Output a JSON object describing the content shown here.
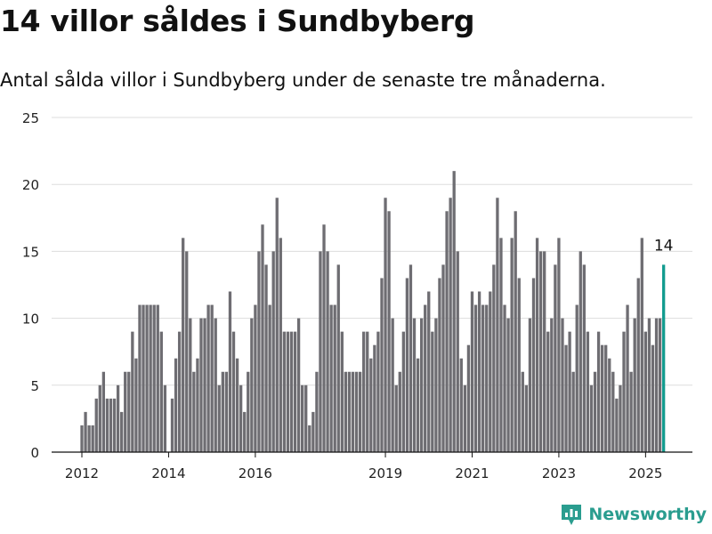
{
  "header": {
    "title": "14 villor såldes i Sundbyberg",
    "subtitle": "Antal sålda villor i Sundbyberg under de senaste tre månaderna."
  },
  "brand": {
    "name": "Newsworthy",
    "icon": "chart-logo-icon",
    "color": "#2a9d8f"
  },
  "colors": {
    "bar": "#6e6d72",
    "highlight": "#139c8f",
    "grid": "#dddddd",
    "axis": "#111111"
  },
  "chart_data": {
    "type": "bar",
    "title": "14 villor såldes i Sundbyberg",
    "subtitle": "Antal sålda villor i Sundbyberg under de senaste tre månaderna.",
    "xlabel": "",
    "ylabel": "",
    "ylim": [
      0,
      25
    ],
    "yticks": [
      0,
      5,
      10,
      15,
      20,
      25
    ],
    "grid": true,
    "x_start": "2012-01",
    "x_ticks": [
      {
        "label": "2012",
        "date": "2012-01"
      },
      {
        "label": "2014",
        "date": "2014-01"
      },
      {
        "label": "2016",
        "date": "2016-01"
      },
      {
        "label": "2019",
        "date": "2019-01"
      },
      {
        "label": "2021",
        "date": "2021-01"
      },
      {
        "label": "2023",
        "date": "2023-01"
      },
      {
        "label": "2025",
        "date": "2025-01"
      }
    ],
    "values": [
      2,
      3,
      2,
      2,
      4,
      5,
      6,
      4,
      4,
      4,
      5,
      3,
      6,
      6,
      9,
      7,
      11,
      11,
      11,
      11,
      11,
      11,
      9,
      5,
      0,
      4,
      7,
      9,
      16,
      15,
      10,
      6,
      7,
      10,
      10,
      11,
      11,
      10,
      5,
      6,
      6,
      12,
      9,
      7,
      5,
      3,
      6,
      10,
      11,
      15,
      17,
      14,
      11,
      15,
      19,
      16,
      9,
      9,
      9,
      9,
      10,
      5,
      5,
      2,
      3,
      6,
      15,
      17,
      15,
      11,
      11,
      14,
      9,
      6,
      6,
      6,
      6,
      6,
      9,
      9,
      7,
      8,
      9,
      13,
      19,
      18,
      10,
      5,
      6,
      9,
      13,
      14,
      10,
      7,
      10,
      11,
      12,
      9,
      10,
      13,
      14,
      18,
      19,
      21,
      15,
      7,
      5,
      8,
      12,
      11,
      12,
      11,
      11,
      12,
      14,
      19,
      16,
      11,
      10,
      16,
      18,
      13,
      6,
      5,
      10,
      13,
      16,
      15,
      15,
      9,
      10,
      14,
      16,
      10,
      8,
      9,
      6,
      11,
      15,
      14,
      9,
      5,
      6,
      9,
      8,
      8,
      7,
      6,
      4,
      5,
      9,
      11,
      6,
      10,
      13,
      16,
      9,
      10,
      8,
      10,
      10,
      14
    ],
    "highlight_last": true,
    "annotation": "14"
  }
}
